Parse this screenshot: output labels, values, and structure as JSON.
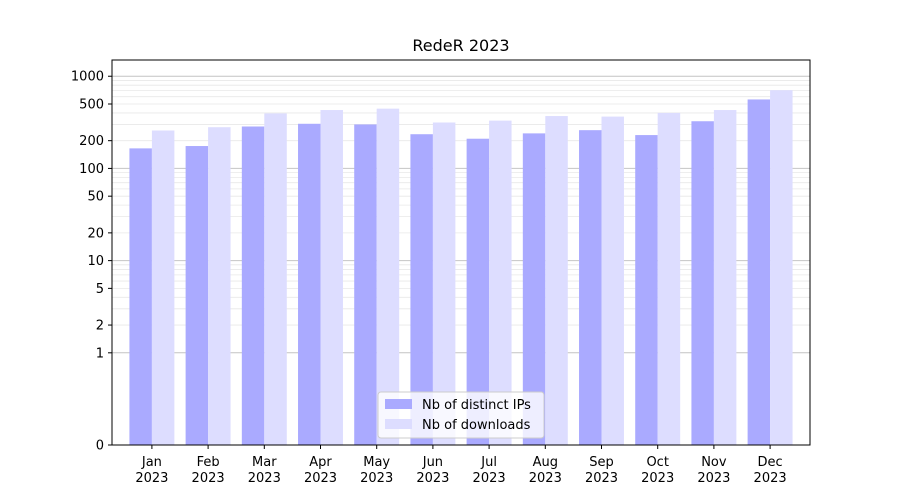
{
  "chart_data": {
    "type": "bar",
    "title": "RedeR 2023",
    "xlabel": "",
    "ylabel": "",
    "y_scale": "symlog",
    "yticks": [
      "0",
      "1",
      "2",
      "5",
      "10",
      "20",
      "50",
      "100",
      "200",
      "500",
      "1000"
    ],
    "categories": [
      {
        "month": "Jan",
        "year": "2023"
      },
      {
        "month": "Feb",
        "year": "2023"
      },
      {
        "month": "Mar",
        "year": "2023"
      },
      {
        "month": "Apr",
        "year": "2023"
      },
      {
        "month": "May",
        "year": "2023"
      },
      {
        "month": "Jun",
        "year": "2023"
      },
      {
        "month": "Jul",
        "year": "2023"
      },
      {
        "month": "Aug",
        "year": "2023"
      },
      {
        "month": "Sep",
        "year": "2023"
      },
      {
        "month": "Oct",
        "year": "2023"
      },
      {
        "month": "Nov",
        "year": "2023"
      },
      {
        "month": "Dec",
        "year": "2023"
      }
    ],
    "series": [
      {
        "name": "Nb of distinct IPs",
        "color": "#aaaaff",
        "values": [
          165,
          175,
          285,
          305,
          300,
          235,
          210,
          240,
          260,
          230,
          325,
          560
        ]
      },
      {
        "name": "Nb of downloads",
        "color": "#ddddff",
        "values": [
          258,
          280,
          395,
          430,
          445,
          315,
          330,
          370,
          365,
          400,
          430,
          705
        ]
      }
    ],
    "grid": true,
    "legend_position": "bottom-center"
  }
}
